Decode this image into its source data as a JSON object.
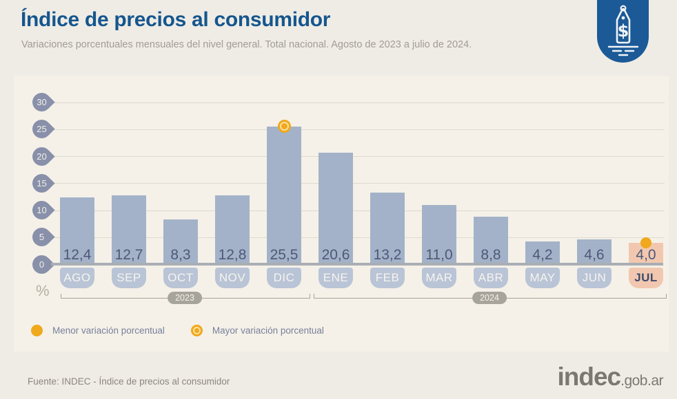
{
  "header": {
    "title": "Índice de precios al consumidor",
    "subtitle": "Variaciones porcentuales mensuales del nivel general. Total nacional. Agosto de 2023 a julio de 2024.",
    "badge_icon": "price-tag-icon"
  },
  "chart_data": {
    "type": "bar",
    "title": "Índice de precios al consumidor",
    "xlabel": "",
    "ylabel": "%",
    "ylim": [
      0,
      30
    ],
    "yticks": [
      30,
      25,
      20,
      15,
      10,
      5,
      0
    ],
    "grid": true,
    "categories": [
      "AGO",
      "SEP",
      "OCT",
      "NOV",
      "DIC",
      "ENE",
      "FEB",
      "MAR",
      "ABR",
      "MAY",
      "JUN",
      "JUL"
    ],
    "values": [
      12.4,
      12.7,
      8.3,
      12.8,
      25.5,
      20.6,
      13.2,
      11.0,
      8.8,
      4.2,
      4.6,
      4.0
    ],
    "value_labels": [
      "12,4",
      "12,7",
      "8,3",
      "12,8",
      "25,5",
      "20,6",
      "13,2",
      "11,0",
      "8,8",
      "4,2",
      "4,6",
      "4,0"
    ],
    "year_groups": [
      {
        "label": "2023",
        "from": 0,
        "to": 4
      },
      {
        "label": "2024",
        "from": 5,
        "to": 11
      }
    ],
    "highlights": {
      "max": {
        "month": "DIC",
        "value": 25.5,
        "marker": "ring-dot"
      },
      "min": {
        "month": "JUL",
        "value": 4.0,
        "marker": "solid-dot",
        "bar_highlighted": true
      }
    },
    "colors": {
      "bar": "#a3b2c8",
      "bar_highlight": "#f1c8af",
      "marker": "#f0a81c",
      "title": "#15568e",
      "panel_bg": "#f5f1e8",
      "page_bg": "#efece5"
    }
  },
  "legend": [
    {
      "marker": "solid-dot",
      "label": "Menor variación porcentual"
    },
    {
      "marker": "ring-dot",
      "label": "Mayor variación porcentual"
    }
  ],
  "footer": {
    "source": "Fuente: INDEC - Índice de precios al consumidor",
    "logo_text": "indec",
    "logo_suffix": ".gob.ar"
  }
}
